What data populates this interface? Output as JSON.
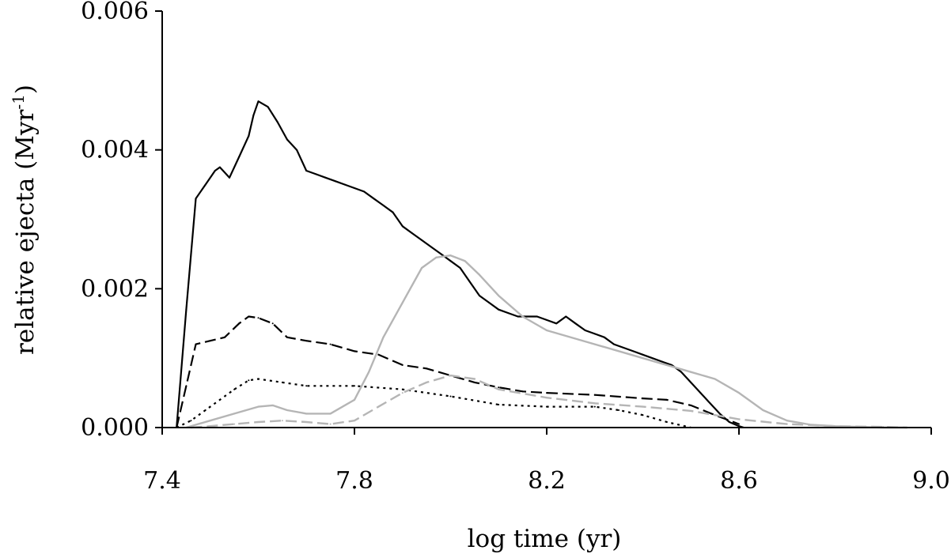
{
  "chart_data": {
    "type": "line",
    "xlabel": "log time (yr)",
    "ylabel_main": "relative ejecta (Myr",
    "ylabel_sup": "-1",
    "ylabel_close": ")",
    "xlim": [
      7.4,
      9.0
    ],
    "ylim": [
      0.0,
      0.006
    ],
    "xticks": [
      7.4,
      7.8,
      8.2,
      8.6,
      9.0
    ],
    "xtick_labels": [
      "7.4",
      "7.8",
      "8.2",
      "8.6",
      "9.0"
    ],
    "yticks": [
      0.0,
      0.002,
      0.004,
      0.006
    ],
    "ytick_labels": [
      "0.000",
      "0.002",
      "0.004",
      "0.006"
    ],
    "grid": false,
    "series": [
      {
        "style": "solid",
        "color": "#000000",
        "x": [
          7.43,
          7.45,
          7.47,
          7.49,
          7.51,
          7.52,
          7.54,
          7.56,
          7.58,
          7.59,
          7.6,
          7.62,
          7.64,
          7.66,
          7.68,
          7.7,
          7.72,
          7.74,
          7.76,
          7.78,
          7.8,
          7.82,
          7.84,
          7.86,
          7.88,
          7.9,
          7.92,
          7.94,
          7.96,
          7.98,
          8.0,
          8.02,
          8.04,
          8.06,
          8.08,
          8.1,
          8.12,
          8.14,
          8.16,
          8.18,
          8.2,
          8.22,
          8.24,
          8.26,
          8.28,
          8.3,
          8.32,
          8.34,
          8.36,
          8.38,
          8.4,
          8.42,
          8.44,
          8.46,
          8.48,
          8.5,
          8.52,
          8.54,
          8.56,
          8.58,
          8.6,
          8.61
        ],
        "y": [
          0.0,
          0.0017,
          0.0033,
          0.0035,
          0.0037,
          0.00375,
          0.0036,
          0.0039,
          0.0042,
          0.0045,
          0.0047,
          0.00462,
          0.0044,
          0.00415,
          0.004,
          0.0037,
          0.00365,
          0.0036,
          0.00355,
          0.0035,
          0.00345,
          0.0034,
          0.0033,
          0.0032,
          0.0031,
          0.0029,
          0.0028,
          0.0027,
          0.0026,
          0.0025,
          0.0024,
          0.0023,
          0.0021,
          0.0019,
          0.0018,
          0.0017,
          0.00165,
          0.0016,
          0.0016,
          0.0016,
          0.00155,
          0.0015,
          0.0016,
          0.0015,
          0.0014,
          0.00135,
          0.0013,
          0.0012,
          0.00115,
          0.0011,
          0.00105,
          0.001,
          0.00095,
          0.0009,
          0.0008,
          0.00065,
          0.0005,
          0.00035,
          0.0002,
          8e-05,
          2e-05,
          0.0
        ]
      },
      {
        "style": "dashed",
        "color": "#000000",
        "x": [
          7.43,
          7.45,
          7.47,
          7.5,
          7.53,
          7.56,
          7.58,
          7.6,
          7.63,
          7.66,
          7.7,
          7.75,
          7.8,
          7.85,
          7.9,
          7.95,
          8.0,
          8.05,
          8.1,
          8.15,
          8.2,
          8.3,
          8.4,
          8.45,
          8.5,
          8.55,
          8.6
        ],
        "y": [
          0.0,
          0.0006,
          0.0012,
          0.00125,
          0.0013,
          0.0015,
          0.0016,
          0.00158,
          0.0015,
          0.0013,
          0.00125,
          0.0012,
          0.0011,
          0.00105,
          0.0009,
          0.00085,
          0.00075,
          0.00065,
          0.00058,
          0.00052,
          0.0005,
          0.00047,
          0.00042,
          0.0004,
          0.00032,
          0.00018,
          5e-05
        ]
      },
      {
        "style": "dotted",
        "color": "#000000",
        "x": [
          7.43,
          7.46,
          7.49,
          7.52,
          7.55,
          7.58,
          7.6,
          7.65,
          7.7,
          7.8,
          7.9,
          8.0,
          8.1,
          8.2,
          8.3,
          8.35,
          8.4,
          8.45,
          8.5
        ],
        "y": [
          0.0,
          0.0001,
          0.00025,
          0.0004,
          0.00055,
          0.00068,
          0.0007,
          0.00065,
          0.0006,
          0.0006,
          0.00055,
          0.00045,
          0.00033,
          0.0003,
          0.0003,
          0.00025,
          0.00018,
          8e-05,
          0.0
        ]
      },
      {
        "style": "solid",
        "color": "#b5b5b5",
        "x": [
          7.45,
          7.5,
          7.55,
          7.6,
          7.63,
          7.66,
          7.7,
          7.75,
          7.8,
          7.83,
          7.86,
          7.9,
          7.94,
          7.97,
          8.0,
          8.03,
          8.06,
          8.1,
          8.15,
          8.2,
          8.3,
          8.4,
          8.5,
          8.55,
          8.6,
          8.65,
          8.7,
          8.75,
          8.8,
          8.85,
          8.9,
          8.95
        ],
        "y": [
          0.0,
          0.0001,
          0.0002,
          0.0003,
          0.00032,
          0.00025,
          0.0002,
          0.0002,
          0.0004,
          0.0008,
          0.0013,
          0.0018,
          0.0023,
          0.00245,
          0.00248,
          0.0024,
          0.0022,
          0.0019,
          0.0016,
          0.0014,
          0.0012,
          0.001,
          0.0008,
          0.0007,
          0.0005,
          0.00025,
          0.0001,
          4e-05,
          2e-05,
          1e-05,
          0.0,
          0.0
        ]
      },
      {
        "style": "dashed",
        "color": "#b5b5b5",
        "x": [
          7.46,
          7.5,
          7.55,
          7.6,
          7.65,
          7.7,
          7.75,
          7.8,
          7.85,
          7.9,
          7.95,
          8.0,
          8.05,
          8.1,
          8.2,
          8.3,
          8.4,
          8.5,
          8.6,
          8.7,
          8.8,
          8.9,
          8.95
        ],
        "y": [
          0.0,
          2e-05,
          5e-05,
          8e-05,
          0.0001,
          8e-05,
          5e-05,
          0.0001,
          0.0003,
          0.0005,
          0.00065,
          0.00075,
          0.0007,
          0.00055,
          0.00043,
          0.00035,
          0.0003,
          0.00024,
          0.00012,
          5e-05,
          2e-05,
          1e-05,
          0.0
        ]
      }
    ]
  }
}
